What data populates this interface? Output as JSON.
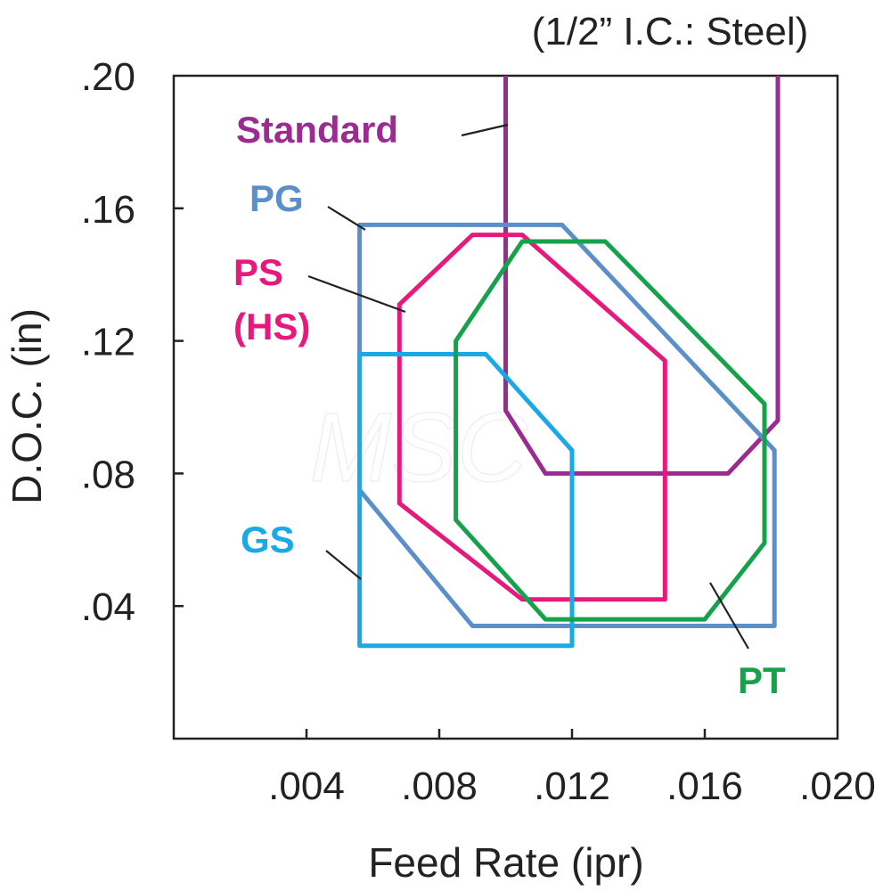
{
  "chart_data": {
    "type": "line",
    "title": "(1/2” I.C.: Steel)",
    "xlabel": "Feed Rate (ipr)",
    "ylabel": "D.O.C. (in)",
    "xlim": [
      0.0,
      0.02
    ],
    "ylim": [
      0.0,
      0.2
    ],
    "x_ticks": [
      {
        "value": 0.004,
        "label": ".004"
      },
      {
        "value": 0.008,
        "label": ".008"
      },
      {
        "value": 0.012,
        "label": ".012"
      },
      {
        "value": 0.016,
        "label": ".016"
      },
      {
        "value": 0.02,
        "label": ".020"
      }
    ],
    "y_ticks": [
      {
        "value": 0.04,
        "label": ".04"
      },
      {
        "value": 0.08,
        "label": ".08"
      },
      {
        "value": 0.12,
        "label": ".12"
      },
      {
        "value": 0.16,
        "label": ".16"
      },
      {
        "value": 0.2,
        "label": ".20"
      }
    ],
    "grid": false,
    "series": [
      {
        "name": "Standard",
        "label_lines": [
          "Standard"
        ],
        "color": "#9b2a91",
        "open_top": true,
        "x": [
          0.01,
          0.01,
          0.0112,
          0.0167,
          0.0182,
          0.0182
        ],
        "y": [
          0.2,
          0.099,
          0.08,
          0.08,
          0.096,
          0.2
        ]
      },
      {
        "name": "PG",
        "label_lines": [
          "PG"
        ],
        "color": "#5a8fca",
        "x": [
          0.0056,
          0.0056,
          0.0117,
          0.0181,
          0.0181,
          0.009,
          0.0056
        ],
        "y": [
          0.075,
          0.155,
          0.155,
          0.087,
          0.034,
          0.034,
          0.075
        ]
      },
      {
        "name": "PS (HS)",
        "label_lines": [
          "PS",
          "(HS)"
        ],
        "color": "#e6197c",
        "x": [
          0.0068,
          0.0068,
          0.009,
          0.0105,
          0.0148,
          0.0148,
          0.0105,
          0.0068
        ],
        "y": [
          0.071,
          0.131,
          0.152,
          0.152,
          0.114,
          0.042,
          0.042,
          0.071
        ]
      },
      {
        "name": "GS",
        "label_lines": [
          "GS"
        ],
        "color": "#1aa9e6",
        "x": [
          0.0056,
          0.0056,
          0.0094,
          0.012,
          0.012,
          0.0056
        ],
        "y": [
          0.028,
          0.116,
          0.116,
          0.087,
          0.028,
          0.028
        ]
      },
      {
        "name": "PT",
        "label_lines": [
          "PT"
        ],
        "color": "#16a24a",
        "x": [
          0.0085,
          0.0085,
          0.0105,
          0.013,
          0.0178,
          0.0178,
          0.016,
          0.0112,
          0.0085
        ],
        "y": [
          0.066,
          0.12,
          0.15,
          0.15,
          0.101,
          0.059,
          0.036,
          0.036,
          0.066
        ]
      }
    ],
    "annotations": [
      "Standard",
      "PG",
      "PS",
      "(HS)",
      "GS",
      "PT"
    ]
  },
  "watermark": "MSC"
}
